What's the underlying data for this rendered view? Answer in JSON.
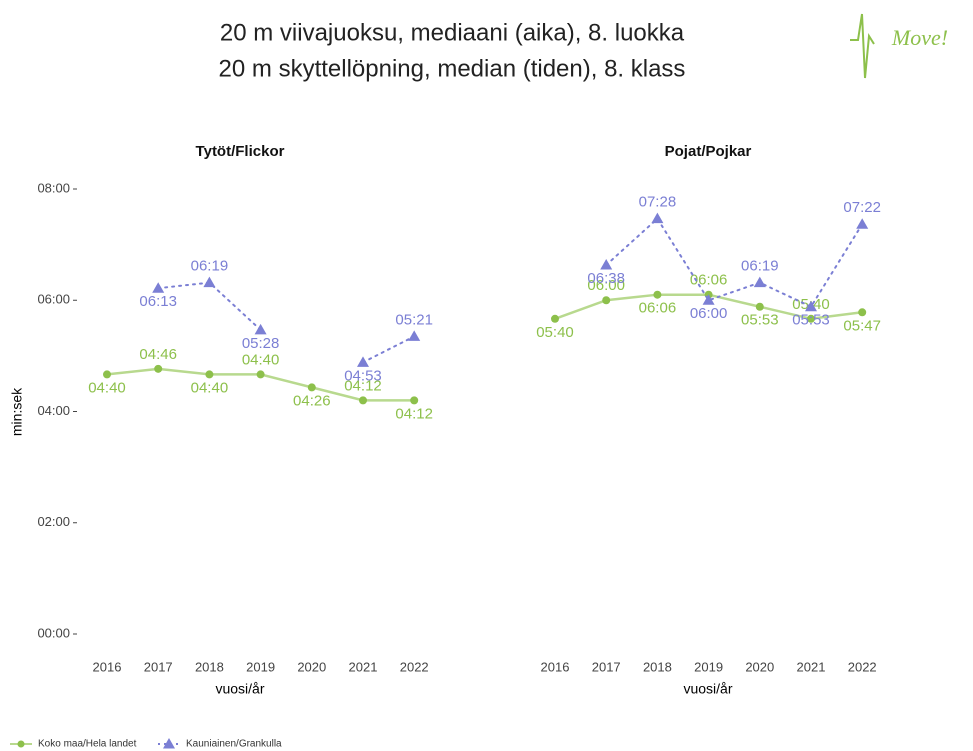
{
  "title": [
    "20 m viivajuoksu, mediaani (aika), 8. luokka",
    "20 m skyttellöpning, median (tiden), 8. klass"
  ],
  "logo": "Move!",
  "chart_data": [
    {
      "type": "line",
      "title": "Tytöt/Flickor",
      "ylabel": "min:sek",
      "xlabel": "vuosi/år",
      "categories": [
        "2016",
        "2017",
        "2018",
        "2019",
        "2020",
        "2021",
        "2022"
      ],
      "ylim": [
        0,
        480
      ],
      "yticks": [
        {
          "value": 0,
          "label": "00:00"
        },
        {
          "value": 120,
          "label": "02:00"
        },
        {
          "value": 240,
          "label": "04:00"
        },
        {
          "value": 360,
          "label": "06:00"
        },
        {
          "value": 480,
          "label": "08:00"
        }
      ],
      "series": [
        {
          "name": "Koko maa/Hela landet",
          "color": "#8dc04b",
          "marker": "circle",
          "values": [
            280,
            286,
            280,
            280,
            266,
            252,
            252
          ],
          "value_labels": [
            "04:40",
            "04:46",
            "04:40",
            "04:40",
            "04:26",
            "04:12",
            "04:12"
          ]
        },
        {
          "name": "Kauniainen/Grankulla",
          "color": "#7b7fd4",
          "marker": "triangle",
          "values": [
            null,
            373,
            379,
            328,
            null,
            293,
            321
          ],
          "value_labels": [
            null,
            "06:13",
            "06:19",
            "05:28",
            null,
            "04:53",
            "05:21"
          ]
        }
      ]
    },
    {
      "type": "line",
      "title": "Pojat/Pojkar",
      "xlabel": "vuosi/år",
      "categories": [
        "2016",
        "2017",
        "2018",
        "2019",
        "2020",
        "2021",
        "2022"
      ],
      "ylim": [
        0,
        480
      ],
      "series": [
        {
          "color": "#8dc04b",
          "marker": "circle",
          "values": [
            340,
            360,
            366,
            366,
            353,
            340,
            347
          ],
          "value_labels": [
            "05:40",
            "06:00",
            "06:06",
            "06:06",
            "05:53",
            "05:40",
            "05:47"
          ]
        },
        {
          "color": "#7b7fd4",
          "marker": "triangle",
          "values": [
            null,
            398,
            448,
            360,
            379,
            353,
            442
          ],
          "value_labels": [
            null,
            "06:38",
            "07:28",
            "06:00",
            "06:19",
            "05:53",
            "07:22"
          ]
        }
      ]
    }
  ]
}
